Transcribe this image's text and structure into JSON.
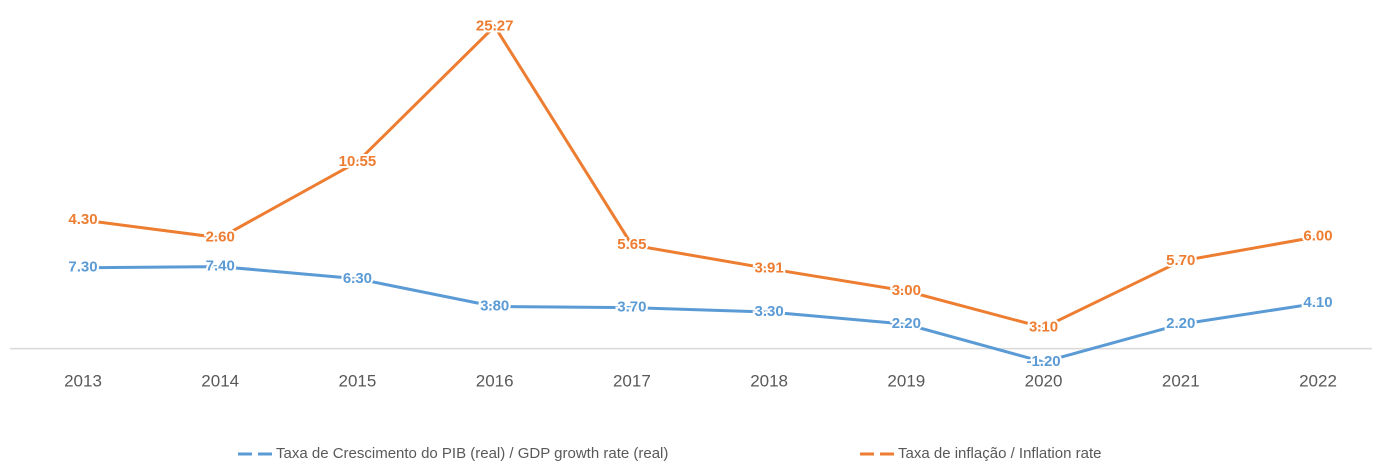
{
  "chart_data": {
    "type": "line",
    "stacked": true,
    "categories": [
      "2013",
      "2014",
      "2015",
      "2016",
      "2017",
      "2018",
      "2019",
      "2020",
      "2021",
      "2022"
    ],
    "series": [
      {
        "name": "Taxa de Crescimento do PIB (real) / GDP growth rate (real)",
        "color": "#5b9bd5",
        "values": [
          7.3,
          7.4,
          6.3,
          3.8,
          3.7,
          3.3,
          2.2,
          -1.2,
          2.2,
          4.1
        ],
        "value_labels": [
          "7.30",
          "7.40",
          "6.30",
          "3.80",
          "3.70",
          "3.30",
          "2.20",
          "-1.20",
          "2.20",
          "4.10"
        ]
      },
      {
        "name": "Taxa de inflação / Inflation rate",
        "color": "#ed7d31",
        "values": [
          4.3,
          2.6,
          10.55,
          25.27,
          5.65,
          3.91,
          3.0,
          3.1,
          5.7,
          6.0
        ],
        "value_labels": [
          "4.30",
          "2.60",
          "10.55",
          "25.27",
          "5.65",
          "3.91",
          "3.00",
          "3.10",
          "5.70",
          "6.00"
        ]
      }
    ],
    "ylim": [
      -4,
      30
    ],
    "legend": "bottom"
  }
}
